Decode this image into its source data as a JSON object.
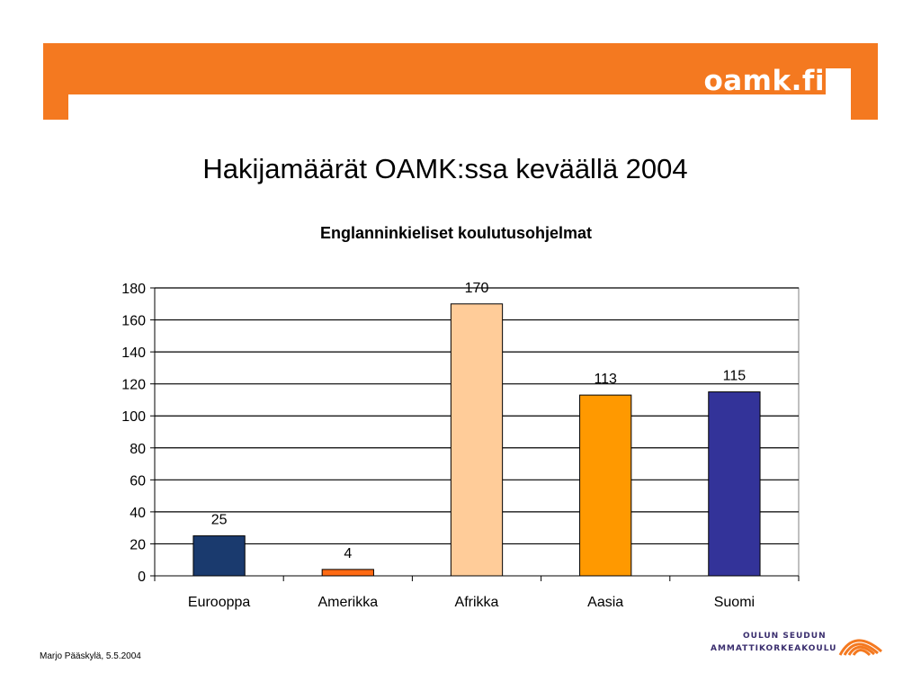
{
  "header": {
    "brand": "oamk.fi"
  },
  "slide": {
    "title": "Hakijamäärät OAMK:ssa keväällä 2004"
  },
  "colors": {
    "header_orange": "#f47920",
    "gridline": "#000000",
    "bars": [
      "#1a3a6e",
      "#ff6a13",
      "#ffcc99",
      "#ff9900",
      "#333399"
    ]
  },
  "chart_data": {
    "type": "bar",
    "title": "Englanninkieliset koulutusohjelmat",
    "categories": [
      "Eurooppa",
      "Amerikka",
      "Afrikka",
      "Aasia",
      "Suomi"
    ],
    "values": [
      25,
      4,
      170,
      113,
      115
    ],
    "xlabel": "",
    "ylabel": "",
    "ylim": [
      0,
      180
    ],
    "yticks": [
      0,
      20,
      40,
      60,
      80,
      100,
      120,
      140,
      160,
      180
    ],
    "grid": true,
    "legend": "none",
    "data_labels": true
  },
  "footer": {
    "author_date": "Marjo Pääskylä, 5.5.2004",
    "org_line1": "OULUN SEUDUN",
    "org_line2": "AMMATTIKORKEAKOULU",
    "logo_icon": "oamk-arc-logo-icon"
  }
}
